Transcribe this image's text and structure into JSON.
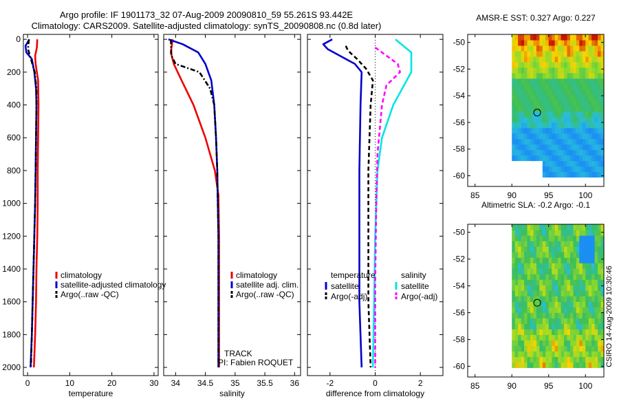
{
  "header": {
    "line1": "Argo profile: IF 1901173_32 07-Aug-2009 20090810_59 55.261S 93.442E",
    "line2": "Climatology: CARS2009. Satellite-adjusted climatology: synTS_20090808.nc (0.8d later)"
  },
  "colors": {
    "red": "#ee0000",
    "blue": "#0000cc",
    "black": "#000000",
    "cyan": "#00e5e5",
    "magenta": "#ff00ff"
  },
  "chart_data": [
    {
      "type": "line",
      "id": "temperature",
      "xlabel": "temperature",
      "xlim": [
        -1,
        31
      ],
      "ylim": [
        2050,
        -30
      ],
      "xticks": [
        0,
        10,
        20,
        30
      ],
      "xtick_labels": [
        "0",
        "10",
        "20",
        "30"
      ],
      "yticks": [
        0,
        200,
        400,
        600,
        800,
        1000,
        1200,
        1400,
        1600,
        1800,
        2000
      ],
      "ytick_labels": [
        "0",
        "200",
        "400",
        "600",
        "800",
        "1000",
        "1200",
        "1400",
        "1600",
        "1800",
        "2000"
      ],
      "series": [
        {
          "name": "climatology",
          "color": "red",
          "dash": "solid",
          "points": [
            [
              2.3,
              0
            ],
            [
              2.2,
              50
            ],
            [
              1.8,
              100
            ],
            [
              1.9,
              150
            ],
            [
              2.5,
              250
            ],
            [
              2.6,
              400
            ],
            [
              2.5,
              600
            ],
            [
              2.4,
              800
            ],
            [
              2.4,
              1000
            ],
            [
              2.3,
              1200
            ],
            [
              2.1,
              1400
            ],
            [
              2.0,
              1600
            ],
            [
              1.8,
              1800
            ],
            [
              1.5,
              2000
            ]
          ]
        },
        {
          "name": "satellite-adjusted climatology",
          "color": "blue",
          "dash": "solid",
          "points": [
            [
              0.4,
              0
            ],
            [
              -0.5,
              40
            ],
            [
              -0.3,
              80
            ],
            [
              1.0,
              120
            ],
            [
              1.6,
              200
            ],
            [
              2.0,
              300
            ],
            [
              2.1,
              400
            ],
            [
              2.0,
              600
            ],
            [
              1.9,
              800
            ],
            [
              1.8,
              1000
            ],
            [
              1.6,
              1200
            ],
            [
              1.4,
              1400
            ],
            [
              1.2,
              1600
            ],
            [
              1.0,
              1800
            ],
            [
              0.7,
              2000
            ]
          ]
        },
        {
          "name": "Argo(..raw -QC)",
          "color": "black",
          "dash": "dashdot",
          "points": [
            [
              0.3,
              0
            ],
            [
              0.1,
              60
            ],
            [
              0.8,
              120
            ],
            [
              1.7,
              200
            ],
            [
              2.1,
              300
            ],
            [
              2.1,
              400
            ],
            [
              2.0,
              600
            ],
            [
              1.9,
              800
            ],
            [
              1.8,
              1000
            ],
            [
              1.6,
              1200
            ],
            [
              1.4,
              1400
            ],
            [
              1.2,
              1600
            ],
            [
              1.0,
              1800
            ],
            [
              0.8,
              2000
            ]
          ]
        }
      ],
      "legend": [
        {
          "label": "climatology",
          "color": "red",
          "dash": "solid"
        },
        {
          "label": "satellite-adjusted climatology",
          "color": "blue",
          "dash": "solid"
        },
        {
          "label": "Argo(..raw -QC)",
          "color": "black",
          "dash": "dashdot"
        }
      ]
    },
    {
      "type": "line",
      "id": "salinity",
      "xlabel": "salinity",
      "xlim": [
        33.8,
        36.1
      ],
      "ylim": [
        2050,
        -30
      ],
      "xticks": [
        34,
        34.5,
        35,
        35.5,
        36
      ],
      "xtick_labels": [
        "34",
        "34.5",
        "35",
        "35.5",
        "36"
      ],
      "series": [
        {
          "name": "climatology",
          "color": "red",
          "dash": "solid",
          "points": [
            [
              33.95,
              0
            ],
            [
              33.92,
              80
            ],
            [
              33.97,
              150
            ],
            [
              34.1,
              250
            ],
            [
              34.3,
              400
            ],
            [
              34.5,
              600
            ],
            [
              34.66,
              800
            ],
            [
              34.72,
              950
            ],
            [
              34.73,
              1200
            ],
            [
              34.73,
              1500
            ],
            [
              34.73,
              2000
            ]
          ]
        },
        {
          "name": "satellite adj. clim.",
          "color": "blue",
          "dash": "solid",
          "points": [
            [
              33.88,
              0
            ],
            [
              34.12,
              30
            ],
            [
              34.38,
              80
            ],
            [
              34.5,
              150
            ],
            [
              34.6,
              250
            ],
            [
              34.65,
              400
            ],
            [
              34.68,
              600
            ],
            [
              34.7,
              800
            ],
            [
              34.71,
              1000
            ],
            [
              34.72,
              1200
            ],
            [
              34.72,
              1600
            ],
            [
              34.72,
              2000
            ]
          ]
        },
        {
          "name": "Argo(..raw -QC)",
          "color": "black",
          "dash": "dashdot",
          "points": [
            [
              33.92,
              0
            ],
            [
              33.93,
              100
            ],
            [
              34.0,
              150
            ],
            [
              34.4,
              200
            ],
            [
              34.58,
              300
            ],
            [
              34.65,
              400
            ],
            [
              34.68,
              600
            ],
            [
              34.7,
              800
            ],
            [
              34.71,
              1000
            ],
            [
              34.72,
              1200
            ],
            [
              34.72,
              2000
            ]
          ]
        }
      ],
      "legend": [
        {
          "label": "climatology",
          "color": "red",
          "dash": "solid"
        },
        {
          "label": "satellite adj. clim.",
          "color": "blue",
          "dash": "solid"
        },
        {
          "label": "Argo(..raw -QC)",
          "color": "black",
          "dash": "dashdot"
        }
      ],
      "annotations": [
        "TRACK",
        "PI: Fabien ROQUET"
      ]
    },
    {
      "type": "line",
      "id": "difference",
      "xlabel": "difference from climatology",
      "xlim": [
        -3,
        3
      ],
      "ylim": [
        2050,
        -30
      ],
      "xticks": [
        -2,
        0,
        2
      ],
      "xtick_labels": [
        "-2",
        "0",
        "2"
      ],
      "zero_line": 0,
      "series": [
        {
          "name": "temperature satellite",
          "color": "blue",
          "dash": "solid",
          "points": [
            [
              -1.9,
              0
            ],
            [
              -2.3,
              30
            ],
            [
              -2.1,
              60
            ],
            [
              -0.9,
              150
            ],
            [
              -0.6,
              200
            ],
            [
              -0.65,
              400
            ],
            [
              -0.7,
              800
            ],
            [
              -0.7,
              1200
            ],
            [
              -0.7,
              1600
            ],
            [
              -0.6,
              2000
            ]
          ]
        },
        {
          "name": "temperature Argo(-adj)",
          "color": "black",
          "dash": "dashed",
          "points": [
            [
              -1.3,
              40
            ],
            [
              -1.2,
              70
            ],
            [
              -0.8,
              120
            ],
            [
              -0.4,
              180
            ],
            [
              -0.1,
              250
            ],
            [
              -0.2,
              400
            ],
            [
              -0.3,
              800
            ],
            [
              -0.3,
              1200
            ],
            [
              -0.3,
              1600
            ],
            [
              -0.2,
              2000
            ]
          ]
        },
        {
          "name": "salinity satellite",
          "color": "cyan",
          "dash": "solid",
          "points": [
            [
              0.9,
              0
            ],
            [
              1.6,
              80
            ],
            [
              1.6,
              200
            ],
            [
              0.8,
              400
            ],
            [
              0.3,
              600
            ],
            [
              0.1,
              800
            ],
            [
              0.0,
              1200
            ],
            [
              -0.05,
              1600
            ],
            [
              -0.1,
              2000
            ]
          ]
        },
        {
          "name": "salinity Argo(-adj)",
          "color": "magenta",
          "dash": "dashed",
          "points": [
            [
              0.0,
              50
            ],
            [
              1.0,
              150
            ],
            [
              1.1,
              200
            ],
            [
              0.5,
              280
            ],
            [
              0.3,
              400
            ],
            [
              0.1,
              700
            ],
            [
              0.05,
              1000
            ],
            [
              0.0,
              1500
            ],
            [
              0.0,
              2000
            ]
          ]
        }
      ],
      "legend": {
        "temperature_title": "temperature",
        "salinity_title": "salinity",
        "items": [
          {
            "label": "satellite",
            "color": "blue",
            "dash": "solid"
          },
          {
            "label": "Argo(-adj)",
            "color": "black",
            "dash": "dashed"
          },
          {
            "label": "satellite",
            "color": "cyan",
            "dash": "solid"
          },
          {
            "label": "Argo(-adj)",
            "color": "magenta",
            "dash": "dashed"
          }
        ]
      }
    },
    {
      "type": "heatmap",
      "id": "sst-map",
      "title": "AMSR-E SST: 0.327 Argo: 0.227",
      "xlim": [
        84,
        102.5
      ],
      "ylim": [
        -60.8,
        -49.4
      ],
      "xticks": [
        85,
        90,
        95,
        100
      ],
      "xtick_labels": [
        "85",
        "90",
        "95",
        "100"
      ],
      "yticks": [
        -50,
        -52,
        -54,
        -56,
        -58,
        -60
      ],
      "ytick_labels": [
        "-50",
        "-52",
        "-54",
        "-56",
        "-58",
        "-60"
      ],
      "argo_position": [
        93.442,
        -55.261
      ]
    },
    {
      "type": "heatmap",
      "id": "sla-map",
      "title": "Altimetric SLA: -0.2 Argo: -0.1",
      "xlim": [
        84,
        102.5
      ],
      "ylim": [
        -60.8,
        -49.4
      ],
      "xticks": [
        85,
        90,
        95,
        100
      ],
      "xtick_labels": [
        "85",
        "90",
        "95",
        "100"
      ],
      "yticks": [
        -50,
        -52,
        -54,
        -56,
        -58,
        -60
      ],
      "ytick_labels": [
        "-50",
        "-52",
        "-54",
        "-56",
        "-58",
        "-60"
      ],
      "argo_position": [
        93.442,
        -55.261
      ]
    }
  ],
  "footer": {
    "stamp": "CSIRO 14-Aug-2009 10:30:46"
  }
}
